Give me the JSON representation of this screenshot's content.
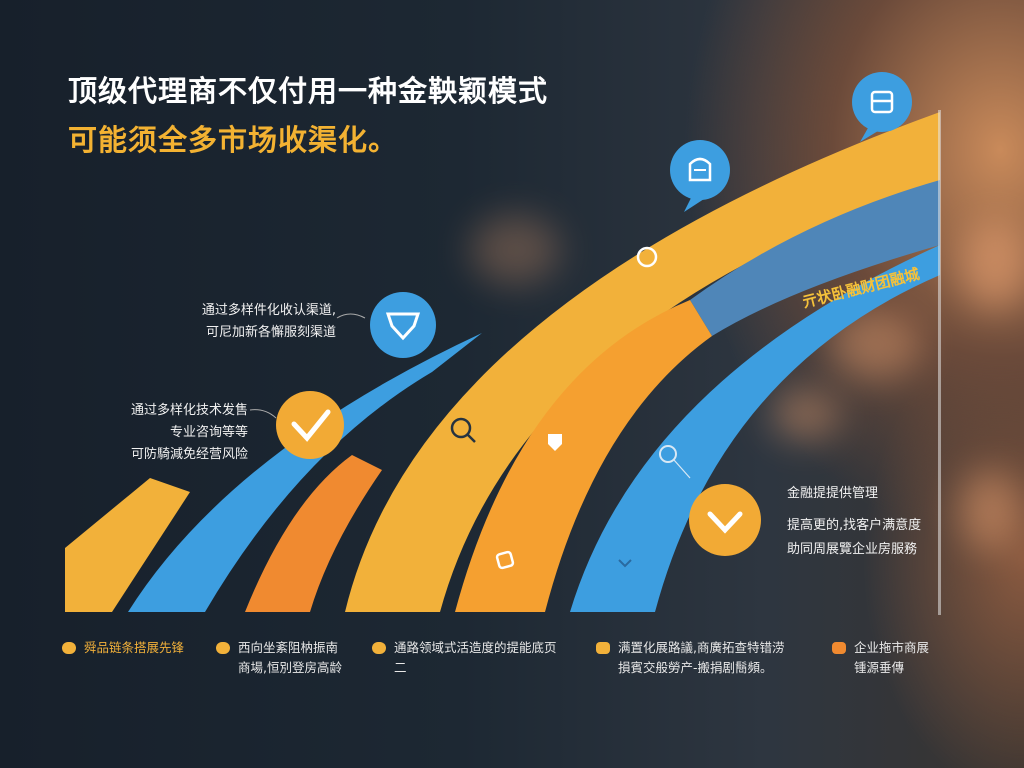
{
  "title": {
    "line1": "顶级代理商不仅付用一种金鞅颖模式",
    "line2": "可能须全多市场收渠化。"
  },
  "colors": {
    "yellow": "#f2b13a",
    "orange": "#f08a30",
    "blue": "#3d9ee0",
    "steel_blue": "#4f86b8",
    "background": "#1b2530"
  },
  "arc_label": "亓状卧融财团融城",
  "notes": {
    "top_left": [
      "通过多样件化收认渠道,",
      "可尼加新各懈服刻渠道"
    ],
    "mid_left": [
      "通过多样化技术发售",
      "专业咨询等等",
      "可防騎減免经营风险"
    ],
    "right": [
      "金融提提供管理",
      "提高更的,找客户满意度",
      "助同周展覽企业房服務"
    ]
  },
  "icons": [
    "checkmark-badge-icon",
    "heart-shield-icon",
    "chat-lock-icon",
    "document-chat-icon",
    "heart-check-icon",
    "search-icon",
    "shield-icon",
    "tag-icon"
  ],
  "legend": [
    {
      "text": [
        "舜品链条搭展先锋"
      ],
      "color": "#f2b13a"
    },
    {
      "text": [
        "西向坐紊阻枘振南",
        "商場,恒別登房高龄"
      ],
      "color": "#f2b13a"
    },
    {
      "text": [
        "通路领域式活造度的提能底页",
        "二"
      ],
      "color": "#f2b13a"
    },
    {
      "text": [
        "满置化展路議,商廣拓查特错涝",
        "損賓交般勞产-搬捐剧鬝頻。"
      ],
      "color": "#f2b13a"
    },
    {
      "text": [
        "企业拖市商展",
        "锺源垂傳"
      ],
      "color": "#f08a30"
    }
  ]
}
